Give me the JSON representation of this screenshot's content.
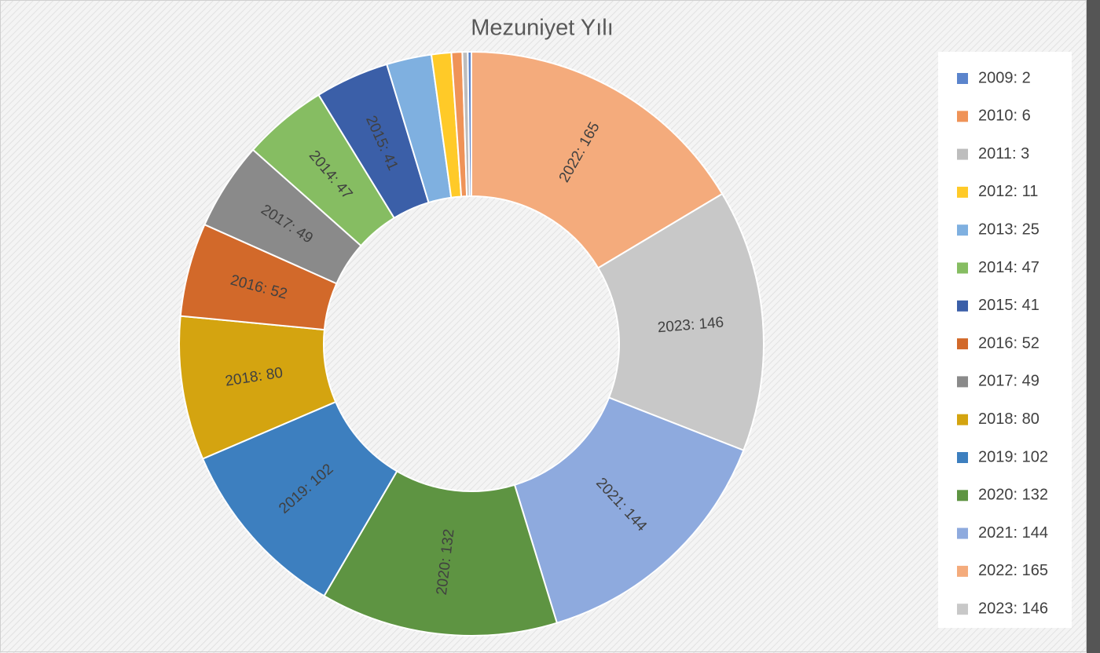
{
  "chart_data": {
    "type": "donut",
    "title": "Mezuniyet Yılı",
    "categories": [
      "2009: 2",
      "2010: 6",
      "2011: 3",
      "2012: 11",
      "2013: 25",
      "2014: 47",
      "2015: 41",
      "2016: 52",
      "2017: 49",
      "2018: 80",
      "2019: 102",
      "2020: 132",
      "2021: 144",
      "2022: 165",
      "2023: 146"
    ],
    "values": [
      2,
      6,
      3,
      11,
      25,
      47,
      41,
      52,
      49,
      80,
      102,
      132,
      144,
      165,
      146
    ],
    "value_labels": [
      null,
      null,
      null,
      null,
      null,
      "2014: 47",
      "2015: 41",
      "2016: 52",
      "2017: 49",
      "2018: 80",
      "2019: 102",
      "2020: 132",
      "2021: 144",
      "2022: 165",
      "2023: 146"
    ],
    "colors": [
      "#5b84cc",
      "#ef9358",
      "#bdbdbd",
      "#ffca28",
      "#7fb0e0",
      "#86bd62",
      "#3b5fa8",
      "#d2692a",
      "#8a8a8a",
      "#d4a410",
      "#3d7fbf",
      "#5e9442",
      "#8eaade",
      "#f4ab7c",
      "#c8c8c8"
    ],
    "slice_order": "descending",
    "legend": "right"
  }
}
